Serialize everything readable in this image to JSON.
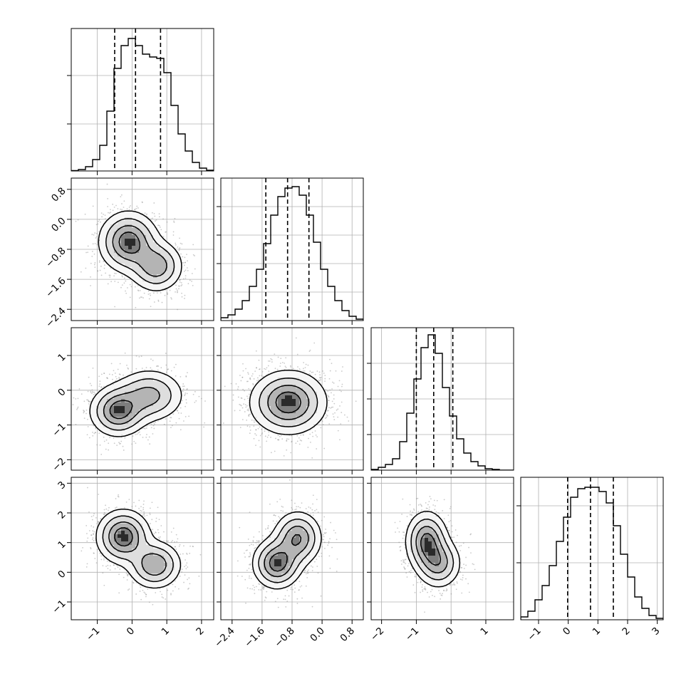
{
  "chart_data": {
    "type": "corner",
    "n_params": 4,
    "params": [
      {
        "name": "",
        "range": [
          -1.75,
          2.35
        ],
        "ticks": [
          -1,
          0,
          1,
          2
        ],
        "tick_labels": [
          "−1",
          "0",
          "1",
          "2"
        ],
        "quantiles": [
          -0.5,
          0.1,
          0.82
        ],
        "hist_bins": [
          0.003,
          0.01,
          0.03,
          0.08,
          0.18,
          0.42,
          0.72,
          0.88,
          0.93,
          0.88,
          0.82,
          0.8,
          0.79,
          0.69,
          0.46,
          0.26,
          0.14,
          0.06,
          0.02,
          0.005
        ],
        "hist_yticks": [
          0.33,
          0.67
        ]
      },
      {
        "name": "",
        "range": [
          -2.7,
          1.1
        ],
        "ticks": [
          -2.4,
          -1.6,
          -0.8,
          0.0,
          0.8
        ],
        "tick_labels": [
          "−2.4",
          "−1.6",
          "−0.8",
          "0.0",
          "0.8"
        ],
        "quantiles": [
          -1.5,
          -0.92,
          -0.35
        ],
        "hist_bins": [
          0.02,
          0.04,
          0.08,
          0.14,
          0.24,
          0.36,
          0.54,
          0.74,
          0.87,
          0.93,
          0.94,
          0.88,
          0.74,
          0.55,
          0.36,
          0.24,
          0.14,
          0.07,
          0.03,
          0.01
        ],
        "hist_yticks": [
          0.2,
          0.4,
          0.6,
          0.8
        ]
      },
      {
        "name": "",
        "range": [
          -2.3,
          1.8
        ],
        "ticks": [
          -2,
          -1,
          0,
          1
        ],
        "tick_labels": [
          "−2",
          "−1",
          "0",
          "1"
        ],
        "quantiles": [
          -1.0,
          -0.5,
          0.05
        ],
        "hist_bins": [
          0.005,
          0.02,
          0.04,
          0.08,
          0.2,
          0.4,
          0.64,
          0.86,
          0.95,
          0.82,
          0.58,
          0.38,
          0.22,
          0.12,
          0.06,
          0.03,
          0.01,
          0.005,
          0,
          0
        ],
        "hist_yticks": [
          0.25,
          0.5,
          0.75
        ]
      },
      {
        "name": "",
        "range": [
          -1.6,
          3.2
        ],
        "ticks": [
          -1,
          0,
          1,
          2,
          3
        ],
        "tick_labels": [
          "−1",
          "0",
          "1",
          "2",
          "3"
        ],
        "quantiles": [
          -0.02,
          0.75,
          1.52
        ],
        "hist_bins": [
          0.02,
          0.06,
          0.14,
          0.24,
          0.38,
          0.55,
          0.72,
          0.86,
          0.92,
          0.93,
          0.93,
          0.9,
          0.82,
          0.66,
          0.46,
          0.3,
          0.16,
          0.08,
          0.03,
          0.01
        ],
        "hist_yticks": [
          0.4,
          0.8
        ]
      }
    ],
    "pairs": [
      {
        "x": 0,
        "y": 1,
        "modes": [
          {
            "x": -0.1,
            "y": -0.6,
            "sx": 0.42,
            "sy": 0.4,
            "w": 1.0
          },
          {
            "x": 0.7,
            "y": -1.25,
            "sx": 0.38,
            "sy": 0.34,
            "w": 0.75
          }
        ]
      },
      {
        "x": 0,
        "y": 2,
        "modes": [
          {
            "x": -0.4,
            "y": -0.6,
            "sx": 0.4,
            "sy": 0.36,
            "w": 1.0
          },
          {
            "x": 0.5,
            "y": -0.15,
            "sx": 0.5,
            "sy": 0.38,
            "w": 0.7
          }
        ]
      },
      {
        "x": 1,
        "y": 2,
        "modes": [
          {
            "x": -0.9,
            "y": -0.35,
            "sx": 0.5,
            "sy": 0.45,
            "w": 1.0
          }
        ]
      },
      {
        "x": 0,
        "y": 3,
        "modes": [
          {
            "x": -0.25,
            "y": 1.2,
            "sx": 0.38,
            "sy": 0.45,
            "w": 1.0
          },
          {
            "x": 0.65,
            "y": 0.25,
            "sx": 0.38,
            "sy": 0.4,
            "w": 0.8
          }
        ]
      },
      {
        "x": 1,
        "y": 3,
        "modes": [
          {
            "x": -1.2,
            "y": 0.3,
            "sx": 0.32,
            "sy": 0.42,
            "w": 1.0
          },
          {
            "x": -0.65,
            "y": 1.15,
            "sx": 0.32,
            "sy": 0.45,
            "w": 0.85
          }
        ]
      },
      {
        "x": 2,
        "y": 3,
        "modes": [
          {
            "x": -0.7,
            "y": 1.05,
            "sx": 0.3,
            "sy": 0.5,
            "w": 1.0
          },
          {
            "x": -0.35,
            "y": 0.3,
            "sx": 0.32,
            "sy": 0.42,
            "w": 0.75
          }
        ]
      }
    ],
    "grid": true,
    "scatter_points": true,
    "contour_levels": 4
  }
}
